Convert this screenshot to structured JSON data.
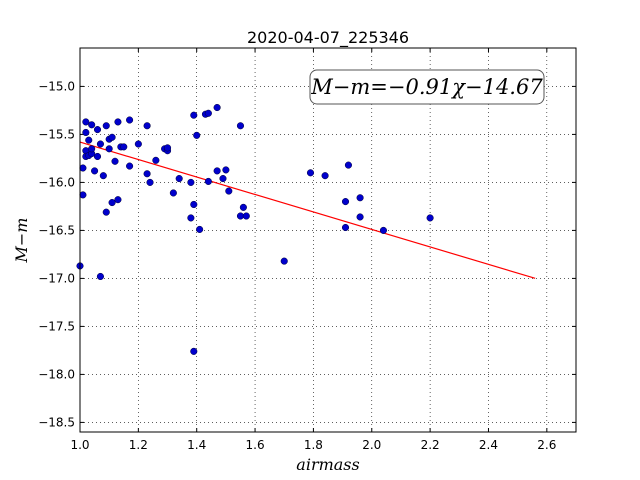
{
  "chart_data": {
    "type": "scatter",
    "title": "2020-04-07_225346",
    "xlabel": "airmass",
    "ylabel": "M−m",
    "xlim": [
      1.0,
      2.7
    ],
    "ylim": [
      -18.6,
      -14.6
    ],
    "y_inverted": true,
    "grid": true,
    "x_ticks": [
      "1.0",
      "1.2",
      "1.4",
      "1.6",
      "1.8",
      "2.0",
      "2.2",
      "2.4",
      "2.6"
    ],
    "y_ticks": [
      "−15.0",
      "−15.5",
      "−16.0",
      "−16.5",
      "−17.0",
      "−17.5",
      "−18.0",
      "−18.5"
    ],
    "annotation": "M−m=−0.91χ−14.67",
    "annotation_placement": "top-right",
    "point_color": "#0000cc",
    "fit_color": "#ff0000",
    "fit": {
      "slope": -0.91,
      "intercept": -14.67,
      "x_range": [
        1.0,
        2.56
      ]
    },
    "points": [
      {
        "x": 1.0,
        "y": -16.87
      },
      {
        "x": 1.01,
        "y": -16.13
      },
      {
        "x": 1.01,
        "y": -15.85
      },
      {
        "x": 1.02,
        "y": -15.48
      },
      {
        "x": 1.02,
        "y": -15.37
      },
      {
        "x": 1.02,
        "y": -15.67
      },
      {
        "x": 1.02,
        "y": -15.73
      },
      {
        "x": 1.03,
        "y": -15.56
      },
      {
        "x": 1.03,
        "y": -15.72
      },
      {
        "x": 1.04,
        "y": -15.7
      },
      {
        "x": 1.04,
        "y": -15.65
      },
      {
        "x": 1.04,
        "y": -15.4
      },
      {
        "x": 1.05,
        "y": -15.88
      },
      {
        "x": 1.06,
        "y": -15.45
      },
      {
        "x": 1.06,
        "y": -15.73
      },
      {
        "x": 1.07,
        "y": -15.6
      },
      {
        "x": 1.07,
        "y": -16.98
      },
      {
        "x": 1.08,
        "y": -15.93
      },
      {
        "x": 1.09,
        "y": -15.41
      },
      {
        "x": 1.1,
        "y": -15.55
      },
      {
        "x": 1.09,
        "y": -16.31
      },
      {
        "x": 1.1,
        "y": -15.65
      },
      {
        "x": 1.11,
        "y": -15.53
      },
      {
        "x": 1.11,
        "y": -16.21
      },
      {
        "x": 1.12,
        "y": -15.78
      },
      {
        "x": 1.13,
        "y": -16.18
      },
      {
        "x": 1.13,
        "y": -15.37
      },
      {
        "x": 1.14,
        "y": -15.63
      },
      {
        "x": 1.15,
        "y": -15.63
      },
      {
        "x": 1.17,
        "y": -15.35
      },
      {
        "x": 1.17,
        "y": -15.83
      },
      {
        "x": 1.2,
        "y": -15.6
      },
      {
        "x": 1.23,
        "y": -15.41
      },
      {
        "x": 1.23,
        "y": -15.91
      },
      {
        "x": 1.24,
        "y": -16.0
      },
      {
        "x": 1.26,
        "y": -15.77
      },
      {
        "x": 1.29,
        "y": -15.65
      },
      {
        "x": 1.3,
        "y": -15.67
      },
      {
        "x": 1.3,
        "y": -15.64
      },
      {
        "x": 1.32,
        "y": -16.11
      },
      {
        "x": 1.34,
        "y": -15.96
      },
      {
        "x": 1.38,
        "y": -16.0
      },
      {
        "x": 1.38,
        "y": -16.37
      },
      {
        "x": 1.39,
        "y": -16.23
      },
      {
        "x": 1.39,
        "y": -15.3
      },
      {
        "x": 1.4,
        "y": -15.51
      },
      {
        "x": 1.39,
        "y": -17.76
      },
      {
        "x": 1.41,
        "y": -16.49
      },
      {
        "x": 1.43,
        "y": -15.29
      },
      {
        "x": 1.44,
        "y": -15.28
      },
      {
        "x": 1.44,
        "y": -15.99
      },
      {
        "x": 1.47,
        "y": -15.22
      },
      {
        "x": 1.47,
        "y": -15.88
      },
      {
        "x": 1.49,
        "y": -15.96
      },
      {
        "x": 1.5,
        "y": -15.87
      },
      {
        "x": 1.51,
        "y": -16.09
      },
      {
        "x": 1.55,
        "y": -15.41
      },
      {
        "x": 1.55,
        "y": -16.35
      },
      {
        "x": 1.56,
        "y": -16.26
      },
      {
        "x": 1.57,
        "y": -16.35
      },
      {
        "x": 1.7,
        "y": -16.82
      },
      {
        "x": 1.79,
        "y": -15.9
      },
      {
        "x": 1.84,
        "y": -15.93
      },
      {
        "x": 1.91,
        "y": -16.47
      },
      {
        "x": 1.91,
        "y": -16.2
      },
      {
        "x": 1.92,
        "y": -15.82
      },
      {
        "x": 1.96,
        "y": -16.36
      },
      {
        "x": 1.96,
        "y": -16.16
      },
      {
        "x": 2.04,
        "y": -16.5
      },
      {
        "x": 2.2,
        "y": -16.37
      }
    ]
  }
}
